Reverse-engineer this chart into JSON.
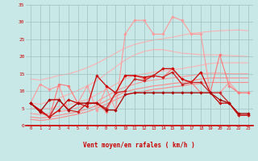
{
  "x": [
    0,
    1,
    2,
    3,
    4,
    5,
    6,
    7,
    8,
    9,
    10,
    11,
    12,
    13,
    14,
    15,
    16,
    17,
    18,
    19,
    20,
    21,
    22,
    23
  ],
  "series": [
    {
      "name": "smooth_top1",
      "color": "#FFB0B0",
      "linewidth": 0.8,
      "marker": null,
      "zorder": 1,
      "values": [
        13.5,
        13.2,
        13.8,
        14.5,
        15.0,
        15.8,
        16.8,
        18.0,
        19.5,
        21.0,
        22.5,
        23.5,
        24.2,
        24.8,
        25.2,
        25.6,
        26.2,
        26.7,
        27.0,
        27.3,
        27.5,
        27.6,
        27.7,
        27.5
      ]
    },
    {
      "name": "smooth_top2",
      "color": "#FFB0B0",
      "linewidth": 0.8,
      "marker": null,
      "zorder": 1,
      "values": [
        6.5,
        6.2,
        7.0,
        8.0,
        9.0,
        10.2,
        11.5,
        13.0,
        15.0,
        17.0,
        19.0,
        20.5,
        21.5,
        22.0,
        22.0,
        21.5,
        21.0,
        20.8,
        20.5,
        20.5,
        20.5,
        20.3,
        20.2,
        20.0
      ]
    },
    {
      "name": "smooth_mid1",
      "color": "#FFB0B0",
      "linewidth": 0.8,
      "marker": null,
      "zorder": 1,
      "values": [
        5.0,
        4.8,
        5.0,
        5.5,
        6.0,
        6.8,
        7.5,
        9.0,
        10.5,
        12.0,
        13.5,
        14.5,
        15.0,
        15.5,
        15.8,
        16.2,
        16.5,
        17.0,
        17.5,
        18.0,
        18.2,
        18.2,
        18.2,
        18.2
      ]
    },
    {
      "name": "smooth_mid2",
      "color": "#FF9999",
      "linewidth": 0.8,
      "marker": null,
      "zorder": 1,
      "values": [
        3.5,
        3.2,
        3.5,
        4.0,
        4.5,
        5.2,
        5.8,
        7.0,
        8.5,
        10.0,
        11.2,
        12.0,
        12.8,
        13.2,
        13.5,
        13.8,
        14.2,
        14.5,
        15.0,
        15.2,
        15.2,
        15.0,
        15.0,
        15.0
      ]
    },
    {
      "name": "smooth_low1",
      "color": "#FF8888",
      "linewidth": 0.8,
      "marker": null,
      "zorder": 1,
      "values": [
        2.5,
        2.2,
        2.5,
        3.0,
        3.5,
        4.0,
        4.8,
        5.8,
        7.2,
        8.5,
        9.8,
        10.5,
        11.0,
        11.5,
        11.8,
        12.2,
        12.5,
        13.0,
        13.5,
        13.8,
        13.8,
        13.8,
        13.8,
        13.8
      ]
    },
    {
      "name": "smooth_low2",
      "color": "#FF8888",
      "linewidth": 0.8,
      "marker": null,
      "zorder": 1,
      "values": [
        1.8,
        1.5,
        1.8,
        2.2,
        2.8,
        3.3,
        4.0,
        5.0,
        6.2,
        7.5,
        8.8,
        9.5,
        10.0,
        10.5,
        10.8,
        11.2,
        11.5,
        12.0,
        12.2,
        12.5,
        12.5,
        12.5,
        12.5,
        12.5
      ]
    },
    {
      "name": "jagged_light_pink_markers",
      "color": "#FF9999",
      "linewidth": 0.8,
      "marker": "D",
      "markersize": 1.8,
      "zorder": 3,
      "values": [
        6.5,
        12.0,
        10.5,
        11.5,
        4.5,
        6.5,
        11.5,
        4.5,
        11.0,
        4.5,
        26.5,
        30.5,
        30.5,
        26.5,
        26.5,
        31.5,
        30.5,
        26.5,
        26.5,
        9.5,
        9.5,
        12.5,
        9.5,
        9.5
      ]
    },
    {
      "name": "jagged_med_pink",
      "color": "#FF7777",
      "linewidth": 0.8,
      "marker": "D",
      "markersize": 1.8,
      "zorder": 3,
      "values": [
        6.5,
        4.5,
        2.5,
        12.0,
        11.5,
        6.5,
        6.5,
        6.5,
        4.0,
        9.5,
        14.5,
        14.5,
        13.5,
        14.5,
        14.0,
        16.5,
        13.5,
        12.5,
        9.5,
        9.5,
        20.5,
        11.5,
        9.5,
        9.5
      ]
    },
    {
      "name": "jagged_dark1",
      "color": "#CC0000",
      "linewidth": 0.9,
      "marker": "D",
      "markersize": 1.8,
      "zorder": 4,
      "values": [
        6.5,
        4.5,
        2.5,
        4.5,
        7.5,
        6.5,
        5.5,
        14.5,
        11.5,
        9.5,
        14.5,
        14.5,
        14.0,
        14.5,
        16.5,
        16.5,
        13.5,
        12.5,
        15.5,
        9.5,
        6.5,
        6.5,
        3.0,
        3.0
      ]
    },
    {
      "name": "jagged_dark2",
      "color": "#CC2222",
      "linewidth": 0.9,
      "marker": "D",
      "markersize": 1.8,
      "zorder": 4,
      "values": [
        6.5,
        4.0,
        2.5,
        7.5,
        4.5,
        4.0,
        6.5,
        6.5,
        5.0,
        9.5,
        10.0,
        13.5,
        13.0,
        14.5,
        14.0,
        15.5,
        12.0,
        12.5,
        12.5,
        9.5,
        9.5,
        6.5,
        3.0,
        3.0
      ]
    },
    {
      "name": "jagged_dark3",
      "color": "#AA0000",
      "linewidth": 0.9,
      "marker": "D",
      "markersize": 1.8,
      "zorder": 4,
      "values": [
        6.5,
        4.0,
        7.5,
        7.5,
        4.5,
        6.5,
        6.5,
        6.5,
        4.5,
        4.5,
        9.0,
        9.5,
        9.5,
        9.5,
        9.5,
        9.5,
        9.5,
        9.5,
        9.5,
        9.5,
        7.5,
        6.5,
        3.5,
        3.5
      ]
    }
  ],
  "wind_arrows": [
    225,
    270,
    225,
    225,
    270,
    270,
    225,
    270,
    225,
    270,
    225,
    270,
    225,
    270,
    225,
    270,
    225,
    270,
    225,
    270,
    225,
    270,
    270,
    45
  ],
  "xlabel": "Vent moyen/en rafales ( km/h )",
  "xlim": [
    -0.5,
    23.5
  ],
  "ylim": [
    0,
    35
  ],
  "yticks": [
    0,
    5,
    10,
    15,
    20,
    25,
    30,
    35
  ],
  "xticks": [
    0,
    1,
    2,
    3,
    4,
    5,
    6,
    7,
    8,
    9,
    10,
    11,
    12,
    13,
    14,
    15,
    16,
    17,
    18,
    19,
    20,
    21,
    22,
    23
  ],
  "bg_color": "#C8E8E8",
  "grid_color": "#A0C0C0",
  "tick_color": "#CC0000",
  "label_color": "#CC0000",
  "spine_bottom_color": "#CC0000"
}
